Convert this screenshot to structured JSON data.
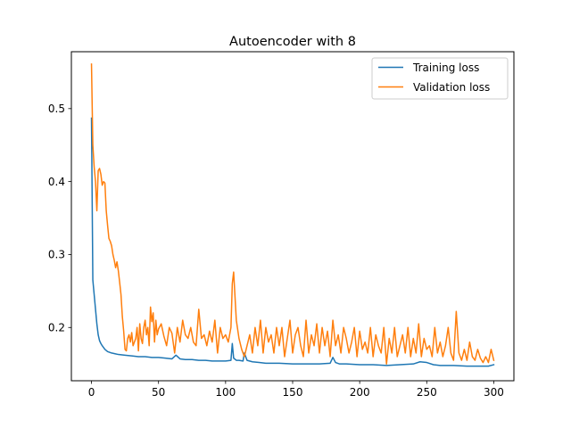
{
  "chart_data": {
    "type": "line",
    "title": "Autoencoder with 8",
    "xlabel": "",
    "ylabel": "",
    "xlim": [
      -15,
      315
    ],
    "ylim": [
      0.127,
      0.578
    ],
    "x_ticks": [
      0,
      50,
      100,
      150,
      200,
      250,
      300
    ],
    "y_ticks": [
      0.2,
      0.3,
      0.4,
      0.5
    ],
    "grid": false,
    "legend_position": "top-right",
    "series": [
      {
        "name": "Training loss",
        "color": "#1f77b4",
        "x": [
          0,
          1,
          2,
          3,
          4,
          5,
          6,
          7,
          8,
          10,
          12,
          15,
          20,
          25,
          30,
          35,
          40,
          45,
          50,
          55,
          60,
          63,
          66,
          70,
          75,
          80,
          85,
          90,
          95,
          100,
          104,
          105,
          106,
          108,
          110,
          113,
          114,
          116,
          120,
          125,
          130,
          140,
          150,
          160,
          170,
          178,
          180,
          182,
          185,
          190,
          200,
          210,
          220,
          230,
          240,
          245,
          250,
          255,
          260,
          270,
          280,
          290,
          296,
          300
        ],
        "y": [
          0.487,
          0.265,
          0.245,
          0.225,
          0.205,
          0.19,
          0.182,
          0.178,
          0.175,
          0.17,
          0.167,
          0.165,
          0.163,
          0.162,
          0.161,
          0.16,
          0.16,
          0.159,
          0.159,
          0.158,
          0.157,
          0.162,
          0.157,
          0.156,
          0.156,
          0.155,
          0.155,
          0.154,
          0.154,
          0.154,
          0.155,
          0.178,
          0.158,
          0.155,
          0.155,
          0.154,
          0.165,
          0.155,
          0.153,
          0.152,
          0.151,
          0.151,
          0.15,
          0.15,
          0.15,
          0.151,
          0.159,
          0.152,
          0.15,
          0.15,
          0.149,
          0.149,
          0.148,
          0.149,
          0.15,
          0.153,
          0.152,
          0.149,
          0.148,
          0.148,
          0.147,
          0.147,
          0.147,
          0.149
        ]
      },
      {
        "name": "Validation loss",
        "color": "#ff7f0e",
        "x": [
          0,
          1,
          2,
          3,
          4,
          5,
          6,
          7,
          8,
          9,
          10,
          11,
          12,
          13,
          14,
          15,
          16,
          17,
          18,
          19,
          20,
          21,
          22,
          23,
          24,
          25,
          26,
          27,
          28,
          29,
          30,
          31,
          32,
          33,
          34,
          35,
          36,
          37,
          38,
          39,
          40,
          41,
          42,
          43,
          44,
          45,
          46,
          47,
          48,
          49,
          50,
          52,
          54,
          56,
          58,
          60,
          62,
          64,
          66,
          68,
          70,
          72,
          74,
          76,
          78,
          80,
          82,
          84,
          86,
          88,
          90,
          92,
          94,
          96,
          98,
          100,
          102,
          104,
          105,
          106,
          108,
          110,
          112,
          114,
          116,
          118,
          120,
          122,
          124,
          126,
          128,
          130,
          132,
          134,
          136,
          138,
          140,
          142,
          144,
          146,
          148,
          150,
          152,
          154,
          156,
          158,
          160,
          162,
          164,
          166,
          168,
          170,
          172,
          174,
          176,
          178,
          180,
          182,
          184,
          186,
          188,
          190,
          192,
          194,
          196,
          198,
          200,
          202,
          204,
          206,
          208,
          210,
          212,
          214,
          216,
          218,
          220,
          222,
          224,
          226,
          228,
          230,
          232,
          234,
          236,
          238,
          240,
          242,
          244,
          246,
          248,
          250,
          252,
          254,
          256,
          258,
          260,
          262,
          264,
          266,
          268,
          270,
          272,
          274,
          276,
          278,
          280,
          282,
          284,
          286,
          288,
          290,
          292,
          294,
          296,
          298,
          300
        ],
        "y": [
          0.561,
          0.45,
          0.42,
          0.4,
          0.36,
          0.415,
          0.418,
          0.41,
          0.395,
          0.4,
          0.398,
          0.36,
          0.34,
          0.322,
          0.318,
          0.312,
          0.3,
          0.292,
          0.282,
          0.29,
          0.278,
          0.262,
          0.245,
          0.215,
          0.195,
          0.17,
          0.168,
          0.185,
          0.19,
          0.18,
          0.193,
          0.175,
          0.18,
          0.185,
          0.2,
          0.168,
          0.205,
          0.185,
          0.178,
          0.2,
          0.21,
          0.19,
          0.2,
          0.175,
          0.228,
          0.208,
          0.22,
          0.18,
          0.21,
          0.19,
          0.198,
          0.205,
          0.188,
          0.175,
          0.2,
          0.192,
          0.165,
          0.2,
          0.18,
          0.21,
          0.19,
          0.185,
          0.2,
          0.18,
          0.175,
          0.225,
          0.185,
          0.19,
          0.175,
          0.195,
          0.18,
          0.21,
          0.165,
          0.2,
          0.185,
          0.19,
          0.18,
          0.2,
          0.26,
          0.276,
          0.21,
          0.185,
          0.17,
          0.16,
          0.175,
          0.19,
          0.165,
          0.2,
          0.175,
          0.21,
          0.165,
          0.2,
          0.18,
          0.19,
          0.165,
          0.2,
          0.175,
          0.2,
          0.16,
          0.185,
          0.21,
          0.165,
          0.19,
          0.2,
          0.175,
          0.16,
          0.21,
          0.165,
          0.19,
          0.175,
          0.205,
          0.165,
          0.2,
          0.175,
          0.195,
          0.16,
          0.21,
          0.175,
          0.19,
          0.165,
          0.2,
          0.185,
          0.165,
          0.18,
          0.2,
          0.16,
          0.195,
          0.17,
          0.18,
          0.165,
          0.2,
          0.16,
          0.19,
          0.175,
          0.165,
          0.2,
          0.15,
          0.185,
          0.165,
          0.2,
          0.16,
          0.175,
          0.19,
          0.165,
          0.2,
          0.16,
          0.185,
          0.165,
          0.205,
          0.16,
          0.185,
          0.17,
          0.175,
          0.16,
          0.2,
          0.165,
          0.18,
          0.16,
          0.175,
          0.2,
          0.165,
          0.155,
          0.222,
          0.165,
          0.155,
          0.17,
          0.155,
          0.18,
          0.16,
          0.155,
          0.17,
          0.158,
          0.152,
          0.16,
          0.152,
          0.17,
          0.155
        ]
      }
    ]
  }
}
